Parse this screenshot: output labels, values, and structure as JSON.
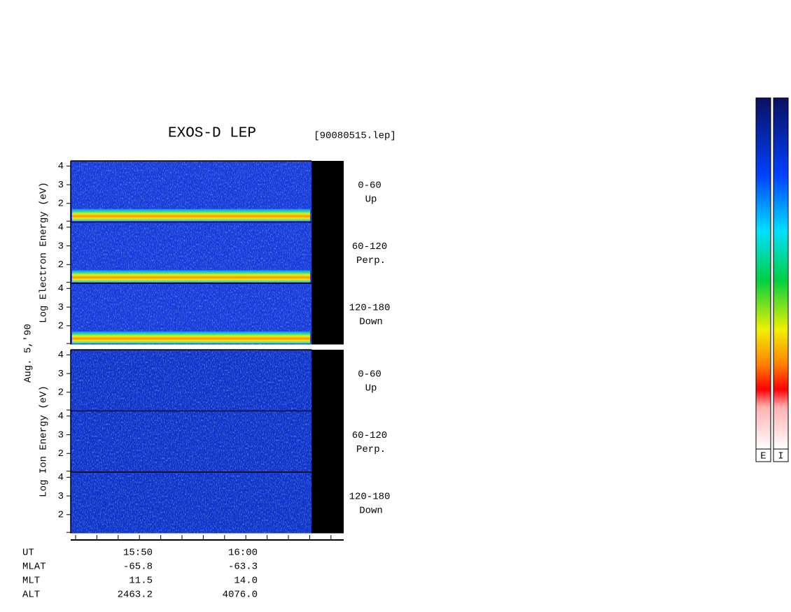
{
  "chart_data": {
    "type": "spectrogram",
    "title": "EXOS-D LEP",
    "file": "[90080515.lep]",
    "date_label": "Aug. 5,'90",
    "ylim": [
      1,
      4.2
    ],
    "yticks": [
      2,
      3,
      4
    ],
    "groups": [
      {
        "ylabel": "Log  Electron  Energy (eV)",
        "panels": [
          {
            "pitch": "0-60",
            "direction": "Up"
          },
          {
            "pitch": "60-120",
            "direction": "Perp."
          },
          {
            "pitch": "120-180",
            "direction": "Down"
          }
        ]
      },
      {
        "ylabel": "Log  Ion  Energy (eV)",
        "panels": [
          {
            "pitch": "0-60",
            "direction": "Up"
          },
          {
            "pitch": "60-120",
            "direction": "Perp."
          },
          {
            "pitch": "120-180",
            "direction": "Down"
          }
        ]
      }
    ],
    "ephemeris": {
      "labels": [
        "UT",
        "MLAT",
        "MLT",
        "ALT"
      ],
      "columns": [
        [
          "15:50",
          "-65.8",
          "11.5",
          "2463.2"
        ],
        [
          "16:00",
          "-63.3",
          "14.0",
          "4076.0"
        ]
      ]
    },
    "colorbars": [
      "E",
      "I"
    ]
  }
}
